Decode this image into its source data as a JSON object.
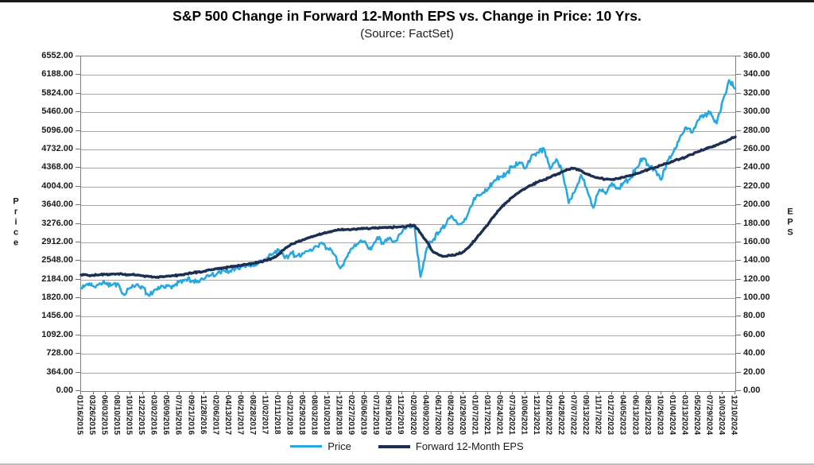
{
  "title": "S&P 500 Change in Forward 12-Month EPS vs. Change in Price: 10 Yrs.",
  "subtitle": "(Source: FactSet)",
  "colors": {
    "grid": "#a6a6a6",
    "plot_border": "#808080",
    "axis_text": "#1a1a1a",
    "price_line": "#29a8e0",
    "eps_line": "#1c2e52"
  },
  "chart_data": {
    "type": "line",
    "title": "S&P 500 Change in Forward 12-Month EPS vs. Change in Price: 10 Yrs.",
    "source": "FactSet",
    "grid": "horizontal",
    "legend_position": "bottom",
    "left_axis": {
      "label": "Price",
      "min": 0,
      "max": 6552,
      "step": 364,
      "tick_labels": [
        "6552.00",
        "6188.00",
        "5824.00",
        "5460.00",
        "5096.00",
        "4732.00",
        "4368.00",
        "4004.00",
        "3640.00",
        "3276.00",
        "2912.00",
        "2548.00",
        "2184.00",
        "1820.00",
        "1456.00",
        "1092.00",
        "728.00",
        "364.00",
        "0.00"
      ]
    },
    "right_axis": {
      "label": "EPS",
      "min": 0,
      "max": 360,
      "step": 20,
      "tick_labels": [
        "360.00",
        "340.00",
        "320.00",
        "300.00",
        "280.00",
        "260.00",
        "240.00",
        "220.00",
        "200.00",
        "180.00",
        "160.00",
        "140.00",
        "120.00",
        "100.00",
        "80.00",
        "60.00",
        "40.00",
        "20.00",
        "0.00"
      ]
    },
    "x_tick_labels": [
      "01/16/2015",
      "03/26/2015",
      "06/03/2015",
      "08/10/2015",
      "10/15/2015",
      "12/22/2015",
      "03/02/2016",
      "05/09/2016",
      "07/15/2016",
      "09/21/2016",
      "11/28/2016",
      "02/06/2017",
      "04/13/2017",
      "06/21/2017",
      "08/28/2017",
      "11/02/2017",
      "01/11/2018",
      "03/21/2018",
      "05/29/2018",
      "08/03/2018",
      "10/10/2018",
      "12/18/2018",
      "02/27/2019",
      "05/06/2019",
      "07/12/2019",
      "09/18/2019",
      "11/22/2019",
      "02/03/2020",
      "04/09/2020",
      "06/17/2020",
      "08/24/2020",
      "10/29/2020",
      "01/07/2021",
      "03/17/2021",
      "05/24/2021",
      "07/30/2021",
      "10/06/2021",
      "12/13/2021",
      "02/18/2022",
      "04/28/2022",
      "07/07/2022",
      "09/13/2022",
      "11/17/2022",
      "01/27/2023",
      "04/05/2023",
      "06/13/2023",
      "08/21/2023",
      "10/26/2023",
      "01/04/2024",
      "03/13/2024",
      "05/20/2024",
      "07/29/2024",
      "10/03/2024",
      "12/10/2024"
    ],
    "sampling_note": "Series values estimated from the plot; sampled at each x tick and at the midpoint between consecutive ticks (107 points per series).",
    "series": [
      {
        "name": "Price",
        "axis": "left",
        "color": "#29a8e0",
        "line_width": 2.6,
        "jitter": 60,
        "values": [
          2019,
          2100,
          2056,
          2110,
          2114,
          2077,
          2104,
          1880,
          2024,
          2089,
          2039,
          1864,
          1986,
          2066,
          2058,
          2050,
          2162,
          2180,
          2163,
          2130,
          2202,
          2262,
          2293,
          2380,
          2329,
          2400,
          2436,
          2470,
          2444,
          2550,
          2580,
          2680,
          2768,
          2600,
          2712,
          2648,
          2690,
          2760,
          2840,
          2905,
          2785,
          2680,
          2403,
          2620,
          2793,
          2900,
          2932,
          2770,
          3014,
          2880,
          3007,
          2940,
          3110,
          3240,
          3249,
          2237,
          2790,
          2955,
          3113,
          3235,
          3431,
          3270,
          3310,
          3585,
          3804,
          3875,
          3974,
          4130,
          4197,
          4280,
          4395,
          4480,
          4363,
          4620,
          4669,
          4750,
          4349,
          4540,
          4287,
          3680,
          3902,
          4230,
          3933,
          3590,
          3947,
          3860,
          4071,
          3960,
          4090,
          4160,
          4369,
          4560,
          4400,
          4330,
          4137,
          4510,
          4688,
          4960,
          5165,
          5060,
          5308,
          5400,
          5464,
          5240,
          5700,
          6090,
          5920
        ]
      },
      {
        "name": "Forward 12-Month EPS",
        "axis": "right",
        "color": "#1c2e52",
        "line_width": 3.4,
        "jitter": 1.0,
        "values": [
          125,
          124.8,
          124.5,
          125,
          125.5,
          125.8,
          126,
          125.5,
          125,
          124.8,
          124,
          123.2,
          122.5,
          123,
          123.5,
          124.2,
          125,
          126,
          127,
          128,
          129,
          130.2,
          131.5,
          132.5,
          133.5,
          134.5,
          135.5,
          136.5,
          137.5,
          139,
          140.5,
          143,
          147,
          153,
          158,
          160.5,
          163,
          165,
          167,
          169,
          171,
          172.5,
          173.5,
          173.8,
          174,
          174.5,
          175,
          175.2,
          175.5,
          175.8,
          176,
          176.5,
          177,
          177.8,
          178.5,
          170,
          161,
          150,
          146.5,
          145,
          146,
          147.5,
          150,
          156,
          164,
          172,
          180,
          189,
          197,
          203.5,
          209,
          214,
          218,
          221.5,
          225,
          227.5,
          230,
          233,
          236,
          238.5,
          239.5,
          237,
          233.5,
          231,
          229,
          228,
          227.5,
          228.5,
          230,
          232,
          234,
          236,
          238.5,
          240.5,
          243,
          245,
          247.5,
          249.5,
          252,
          254.5,
          257.5,
          260,
          262.5,
          265,
          267.5,
          270.5,
          273.5
        ]
      }
    ]
  }
}
